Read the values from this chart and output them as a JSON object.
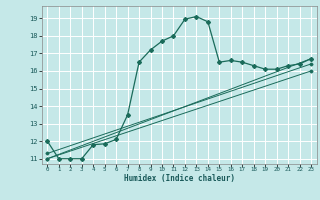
{
  "xlabel": "Humidex (Indice chaleur)",
  "bg_color": "#c5e8e8",
  "grid_color": "#ffffff",
  "line_color": "#1a6b5a",
  "xlim": [
    -0.5,
    23.5
  ],
  "ylim": [
    10.7,
    19.7
  ],
  "xticks": [
    0,
    1,
    2,
    3,
    4,
    5,
    6,
    7,
    8,
    9,
    10,
    11,
    12,
    13,
    14,
    15,
    16,
    17,
    18,
    19,
    20,
    21,
    22,
    23
  ],
  "yticks": [
    11,
    12,
    13,
    14,
    15,
    16,
    17,
    18,
    19
  ],
  "main_x": [
    0,
    1,
    2,
    3,
    4,
    5,
    6,
    7,
    8,
    9,
    10,
    11,
    12,
    13,
    14,
    15,
    16,
    17,
    18,
    19,
    20,
    21,
    22,
    23
  ],
  "main_y": [
    12.0,
    11.0,
    11.0,
    11.0,
    11.8,
    11.85,
    12.1,
    13.5,
    16.5,
    17.2,
    17.7,
    18.0,
    18.95,
    19.1,
    18.8,
    16.5,
    16.6,
    16.5,
    16.3,
    16.1,
    16.1,
    16.3,
    16.4,
    16.7
  ],
  "line2_x": [
    0,
    23
  ],
  "line2_y": [
    11.0,
    16.7
  ],
  "line3_x": [
    0,
    23
  ],
  "line3_y": [
    11.0,
    16.0
  ],
  "line4_x": [
    0,
    23
  ],
  "line4_y": [
    11.3,
    16.4
  ],
  "line2_markers_x": [
    0,
    3,
    4,
    5,
    6,
    14,
    15,
    16,
    17,
    18,
    19,
    20,
    21,
    22,
    23
  ],
  "line2_markers_y": [
    11.0,
    11.0,
    11.48,
    11.7,
    12.0,
    18.8,
    16.5,
    16.6,
    16.5,
    16.3,
    16.1,
    16.1,
    16.3,
    16.4,
    16.7
  ]
}
